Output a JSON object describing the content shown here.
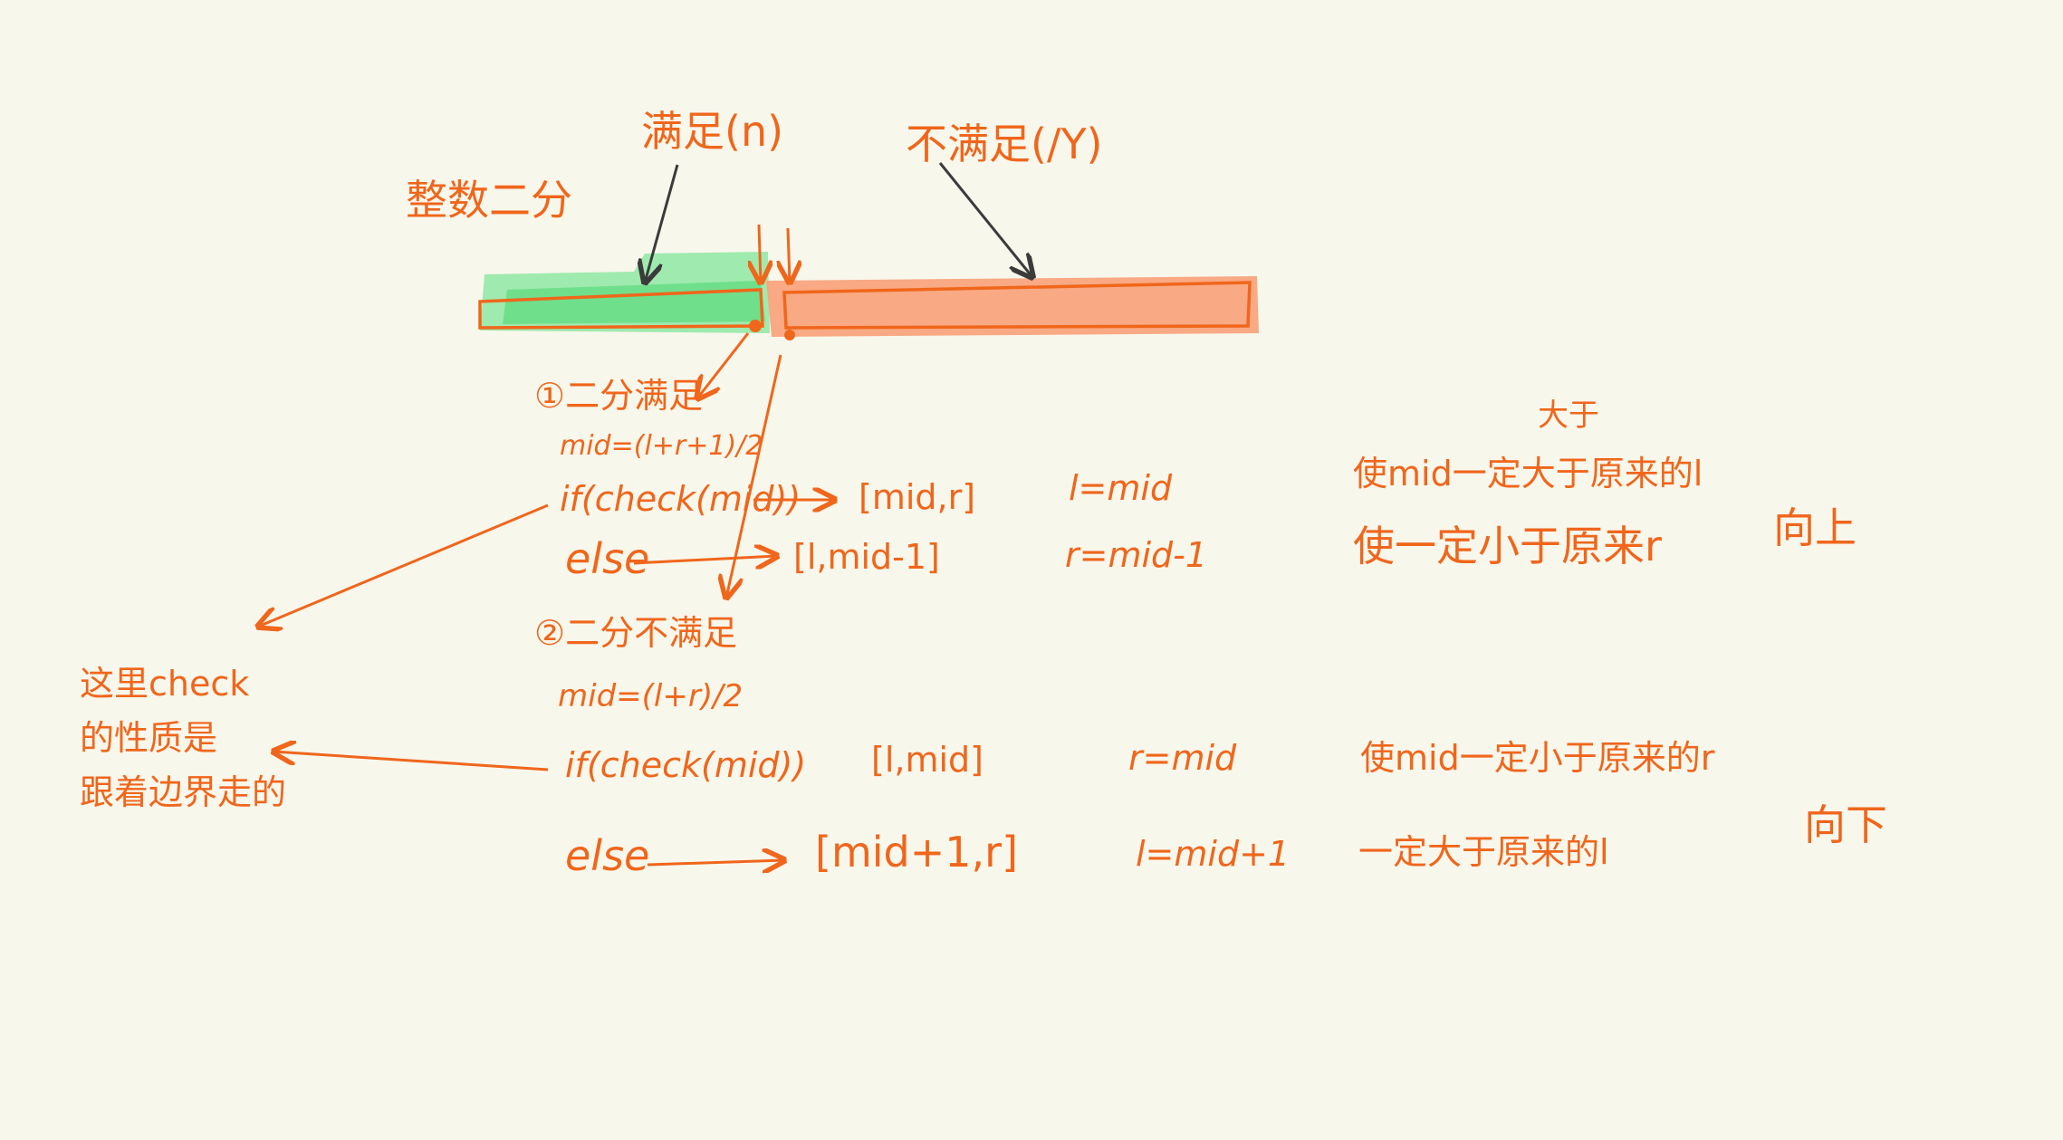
{
  "diagram": {
    "title_label": "整数二分",
    "bar_labels": {
      "left": "满足(n)",
      "right": "不满足(/Y)"
    },
    "case1": {
      "heading": "①二分满足",
      "mid_formula": "mid=(l+r+1)/2",
      "if_line": "if(check(mid))",
      "if_interval": "[mid,r]",
      "if_assign": "l=mid",
      "if_note": "使mid一定大于原来的l",
      "else_line": "else",
      "else_interval": "[l,mid-1]",
      "else_assign": "r=mid-1",
      "else_note": "使一定小于原来r",
      "above_note": "大于",
      "side_note": "向上"
    },
    "case2": {
      "heading": "②二分不满足",
      "mid_formula": "mid=(l+r)/2",
      "if_line": "if(check(mid))",
      "if_interval": "[l,mid]",
      "if_assign": "r=mid",
      "if_note": "使mid一定小于原来的r",
      "else_line": "else",
      "else_interval": "[mid+1,r]",
      "else_assign": "l=mid+1",
      "else_note": "一定大于原来的l",
      "side_note": "向下"
    },
    "left_note": {
      "line1": "这里check",
      "line2": "的性质是",
      "line3": "跟着边界走的"
    }
  },
  "colors": {
    "background": "#f8f7ec",
    "ink_orange": "#f0661b",
    "ink_dark": "#3b3b3b",
    "green_fill": "#7ee39a",
    "red_fill": "#f9a47e"
  }
}
